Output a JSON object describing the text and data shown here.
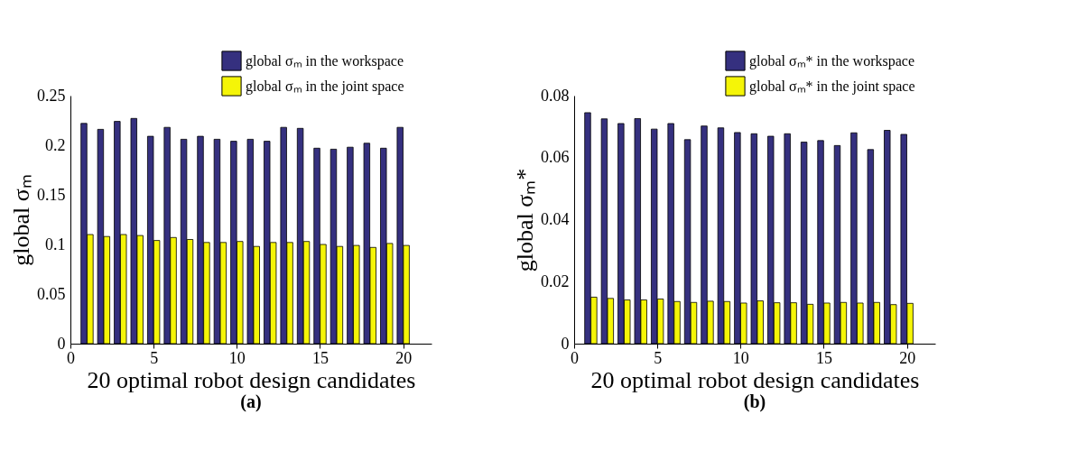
{
  "chart_data": [
    {
      "type": "bar",
      "x": [
        1,
        2,
        3,
        4,
        5,
        6,
        7,
        8,
        9,
        10,
        11,
        12,
        13,
        14,
        15,
        16,
        17,
        18,
        19,
        20
      ],
      "xlim": [
        0,
        21.7
      ],
      "xticks": [
        0,
        5,
        10,
        15,
        20
      ],
      "ylim": [
        0,
        0.25
      ],
      "yticks": [
        0,
        0.05,
        0.1,
        0.15,
        0.2,
        0.25
      ],
      "xlabel": "20 optimal robot design candidates",
      "ylabel": "global σₘ",
      "legend": "top right",
      "grid": false,
      "annotations": [
        "(a)"
      ],
      "series": [
        {
          "name": "global σₘ in the workspace",
          "color": "#35307f",
          "values": [
            0.222,
            0.216,
            0.224,
            0.227,
            0.209,
            0.218,
            0.206,
            0.209,
            0.206,
            0.204,
            0.206,
            0.204,
            0.218,
            0.217,
            0.197,
            0.196,
            0.198,
            0.202,
            0.197,
            0.218
          ]
        },
        {
          "name": "global σₘ in the joint space",
          "color": "#f5f507",
          "values": [
            0.11,
            0.108,
            0.11,
            0.109,
            0.104,
            0.107,
            0.105,
            0.102,
            0.102,
            0.103,
            0.098,
            0.102,
            0.102,
            0.103,
            0.1,
            0.098,
            0.099,
            0.097,
            0.101,
            0.099
          ]
        }
      ]
    },
    {
      "type": "bar",
      "x": [
        1,
        2,
        3,
        4,
        5,
        6,
        7,
        8,
        9,
        10,
        11,
        12,
        13,
        14,
        15,
        16,
        17,
        18,
        19,
        20
      ],
      "xlim": [
        0,
        21.7
      ],
      "xticks": [
        0,
        5,
        10,
        15,
        20
      ],
      "ylim": [
        0,
        0.08
      ],
      "yticks": [
        0,
        0.02,
        0.04,
        0.06,
        0.08
      ],
      "xlabel": "20 optimal robot design candidates",
      "ylabel": "global σₘ*",
      "legend": "top right",
      "grid": false,
      "annotations": [
        "(b)"
      ],
      "series": [
        {
          "name": "global σₘ* in the workspace",
          "color": "#35307f",
          "values": [
            0.0745,
            0.0725,
            0.071,
            0.0726,
            0.0692,
            0.071,
            0.0658,
            0.0702,
            0.0696,
            0.0681,
            0.0677,
            0.0669,
            0.0677,
            0.065,
            0.0655,
            0.0639,
            0.068,
            0.0626,
            0.0688,
            0.0675
          ]
        },
        {
          "name": "global σₘ* in the joint space",
          "color": "#f5f507",
          "values": [
            0.015,
            0.0146,
            0.0141,
            0.0141,
            0.0144,
            0.0136,
            0.0133,
            0.0137,
            0.0136,
            0.0131,
            0.0138,
            0.0132,
            0.0132,
            0.0127,
            0.0131,
            0.0133,
            0.0131,
            0.0133,
            0.0126,
            0.013
          ]
        }
      ]
    }
  ]
}
